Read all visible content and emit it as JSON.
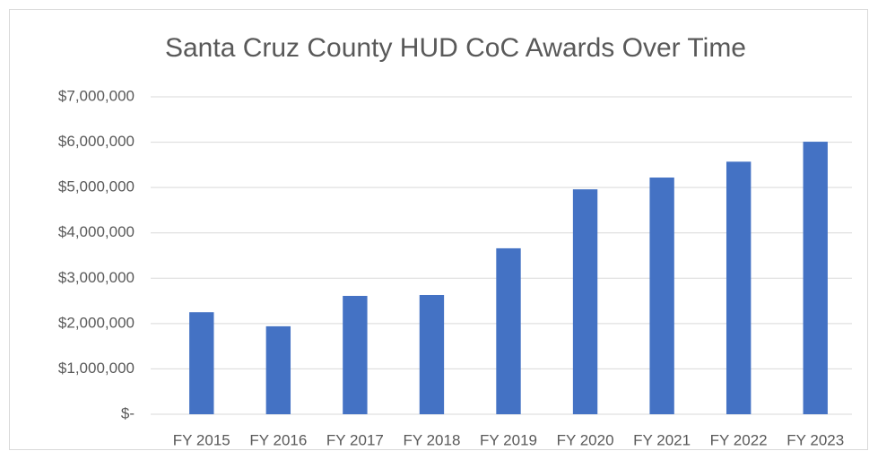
{
  "chart_data": {
    "type": "bar",
    "title": "Santa Cruz County HUD CoC Awards Over Time",
    "categories": [
      "FY 2015",
      "FY 2016",
      "FY 2017",
      "FY 2018",
      "FY 2019",
      "FY 2020",
      "FY 2021",
      "FY 2022",
      "FY 2023"
    ],
    "values": [
      2250000,
      1940000,
      2610000,
      2630000,
      3660000,
      4960000,
      5220000,
      5570000,
      6010000
    ],
    "color": "#4472c4",
    "ylim": [
      0,
      7000000
    ],
    "yticks": [
      {
        "value": 0,
        "label": "$-"
      },
      {
        "value": 1000000,
        "label": "$1,000,000"
      },
      {
        "value": 2000000,
        "label": "$2,000,000"
      },
      {
        "value": 3000000,
        "label": "$3,000,000"
      },
      {
        "value": 4000000,
        "label": "$4,000,000"
      },
      {
        "value": 5000000,
        "label": "$5,000,000"
      },
      {
        "value": 6000000,
        "label": "$6,000,000"
      },
      {
        "value": 7000000,
        "label": "$7,000,000"
      }
    ],
    "grid": true
  }
}
